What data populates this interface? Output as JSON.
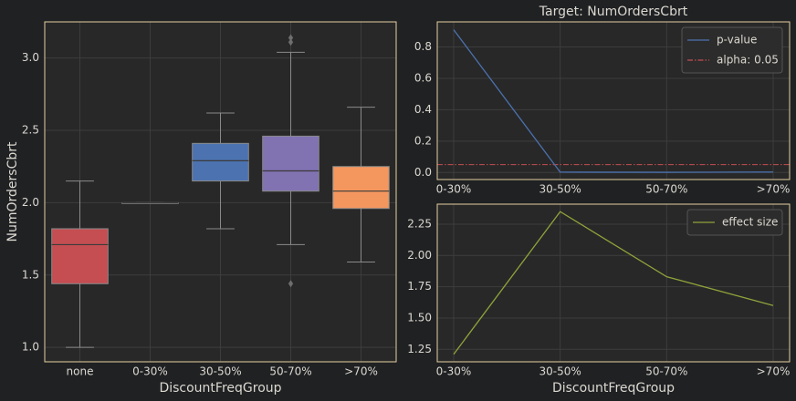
{
  "theme": {
    "figure_bg": "#1f2123",
    "axes_bg": "#282828",
    "frame": "#e6cfa0",
    "grid": "#3d3d3d",
    "text": "#dcd8d0",
    "median": "#3a3a3a",
    "whisker": "#8a8a8a"
  },
  "chart_data": [
    {
      "type": "box",
      "title": "",
      "xlabel": "DiscountFreqGroup",
      "ylabel": "NumOrdersCbrt",
      "categories": [
        "none",
        "0-30%",
        "30-50%",
        "50-70%",
        ">70%"
      ],
      "ylim": [
        0.9,
        3.25
      ],
      "yticks": [
        1.0,
        1.5,
        2.0,
        2.5,
        3.0
      ],
      "ytick_labels": [
        "1.0",
        "1.5",
        "2.0",
        "2.5",
        "3.0"
      ],
      "grid": true,
      "boxes": [
        {
          "category": "none",
          "whislo": 1.0,
          "q1": 1.44,
          "med": 1.71,
          "q3": 1.82,
          "whishi": 2.15,
          "fliers": [],
          "color": "#c44e52"
        },
        {
          "category": "0-30%",
          "whislo": 2.0,
          "q1": 2.0,
          "med": 2.0,
          "q3": 2.0,
          "whishi": 2.0,
          "fliers": [],
          "color": "#8c8c8c"
        },
        {
          "category": "30-50%",
          "whislo": 1.82,
          "q1": 2.15,
          "med": 2.29,
          "q3": 2.41,
          "whishi": 2.62,
          "fliers": [],
          "color": "#4c72b0"
        },
        {
          "category": "50-70%",
          "whislo": 1.71,
          "q1": 2.08,
          "med": 2.22,
          "q3": 2.46,
          "whishi": 3.04,
          "fliers": [
            1.44,
            3.11,
            3.14
          ],
          "color": "#8172b2"
        },
        {
          "category": ">70%",
          "whislo": 1.59,
          "q1": 1.96,
          "med": 2.08,
          "q3": 2.25,
          "whishi": 2.66,
          "fliers": [],
          "color": "#f4975e"
        }
      ]
    },
    {
      "type": "line",
      "title": "Target: NumOrdersCbrt",
      "xlabel": "",
      "ylabel": "",
      "x": [
        "0-30%",
        "30-50%",
        "50-70%",
        ">70%"
      ],
      "ylim": [
        -0.045,
        0.96
      ],
      "yticks": [
        0.0,
        0.2,
        0.4,
        0.6,
        0.8
      ],
      "ytick_labels": [
        "0.0",
        "0.2",
        "0.4",
        "0.6",
        "0.8"
      ],
      "grid": true,
      "legend_position": "top-right",
      "series": [
        {
          "name": "p-value",
          "values": [
            0.91,
            0.002,
            0.001,
            0.003
          ],
          "color": "#4c72b0",
          "style": "solid"
        }
      ],
      "reference_lines": [
        {
          "name": "alpha: 0.05",
          "y": 0.05,
          "color": "#c44e52",
          "style": "dashdot"
        }
      ]
    },
    {
      "type": "line",
      "title": "",
      "xlabel": "DiscountFreqGroup",
      "ylabel": "",
      "x": [
        "0-30%",
        "30-50%",
        "50-70%",
        ">70%"
      ],
      "ylim": [
        1.15,
        2.41
      ],
      "yticks": [
        1.25,
        1.5,
        1.75,
        2.0,
        2.25
      ],
      "ytick_labels": [
        "1.25",
        "1.50",
        "1.75",
        "2.00",
        "2.25"
      ],
      "grid": true,
      "legend_position": "top-right",
      "series": [
        {
          "name": "effect size",
          "values": [
            1.21,
            2.35,
            1.83,
            1.6
          ],
          "color": "#8fa33a",
          "style": "solid"
        }
      ]
    }
  ]
}
